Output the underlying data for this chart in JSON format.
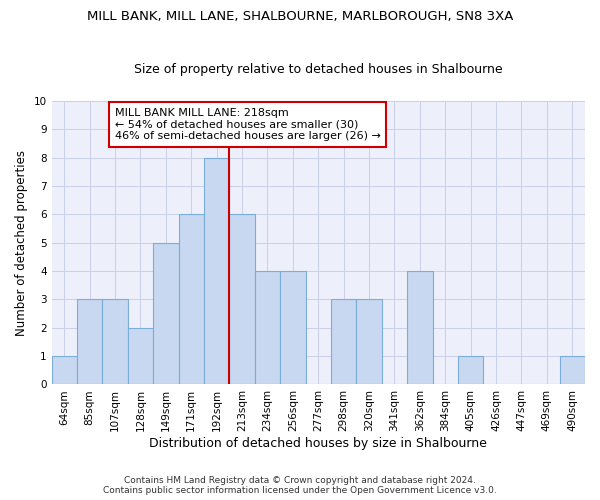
{
  "title1": "MILL BANK, MILL LANE, SHALBOURNE, MARLBOROUGH, SN8 3XA",
  "title2": "Size of property relative to detached houses in Shalbourne",
  "xlabel": "Distribution of detached houses by size in Shalbourne",
  "ylabel": "Number of detached properties",
  "categories": [
    "64sqm",
    "85sqm",
    "107sqm",
    "128sqm",
    "149sqm",
    "171sqm",
    "192sqm",
    "213sqm",
    "234sqm",
    "256sqm",
    "277sqm",
    "298sqm",
    "320sqm",
    "341sqm",
    "362sqm",
    "384sqm",
    "405sqm",
    "426sqm",
    "447sqm",
    "469sqm",
    "490sqm"
  ],
  "values": [
    1,
    3,
    3,
    2,
    5,
    6,
    8,
    6,
    4,
    4,
    0,
    3,
    3,
    0,
    4,
    0,
    1,
    0,
    0,
    0,
    1
  ],
  "bar_color": "#c8d8f0",
  "bar_edge_color": "#7baed6",
  "vline_position": 7.5,
  "vline_color": "#cc0000",
  "annotation_line1": "MILL BANK MILL LANE: 218sqm",
  "annotation_line2": "← 54% of detached houses are smaller (30)",
  "annotation_line3": "46% of semi-detached houses are larger (26) →",
  "annotation_box_color": "#cc0000",
  "ylim": [
    0,
    10
  ],
  "yticks": [
    0,
    1,
    2,
    3,
    4,
    5,
    6,
    7,
    8,
    9,
    10
  ],
  "grid_color": "#c8d0e8",
  "background_color": "#edf0fb",
  "footer1": "Contains HM Land Registry data © Crown copyright and database right 2024.",
  "footer2": "Contains public sector information licensed under the Open Government Licence v3.0.",
  "title1_fontsize": 9.5,
  "title2_fontsize": 9,
  "xlabel_fontsize": 9,
  "ylabel_fontsize": 8.5,
  "tick_fontsize": 7.5,
  "annotation_fontsize": 8,
  "footer_fontsize": 6.5
}
